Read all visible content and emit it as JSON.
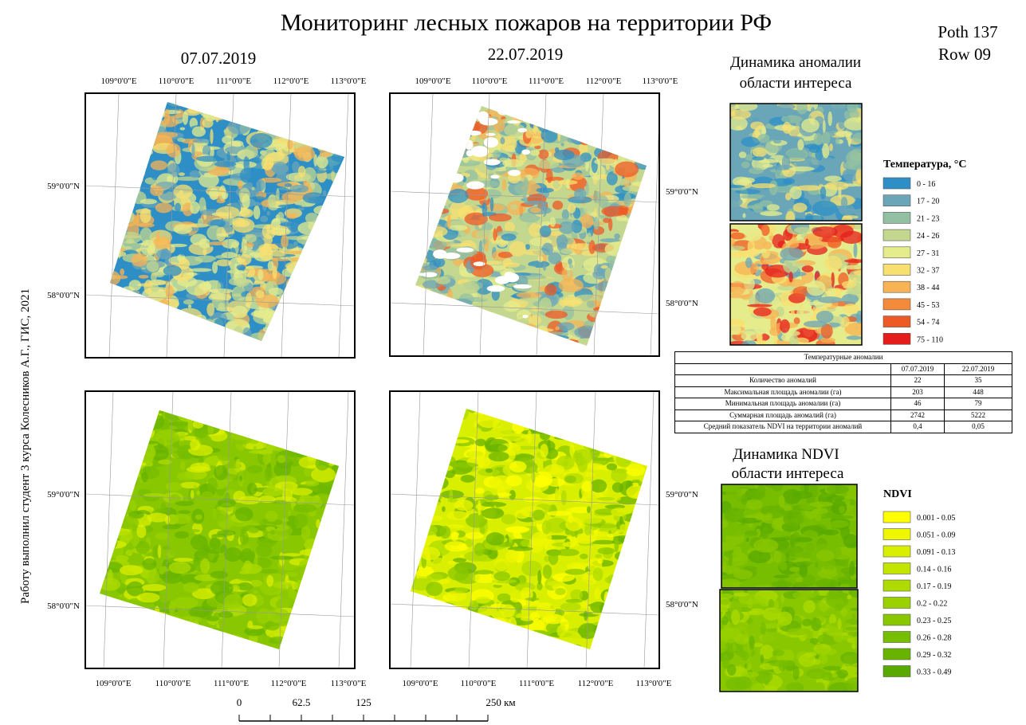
{
  "title": "Мониторинг лесных пожаров на территории РФ",
  "path_row": [
    "Poth 137",
    "Row 09"
  ],
  "dates": [
    "07.07.2019",
    "22.07.2019"
  ],
  "maps": [
    {
      "lon": [
        "109°0'0\"E",
        "110°0'0\"E",
        "111°0'0\"E",
        "112°0'0\"E",
        "113°0'0\"E"
      ],
      "lat": [
        "59°0'0\"N",
        "58°0'0\"N"
      ]
    },
    {
      "lon": [
        "109°0'0\"E",
        "110°0'0\"E",
        "111°0'0\"E",
        "112°0'0\"E",
        "113°0'0\"E"
      ],
      "lat": [
        "59°0'0\"N",
        "58°0'0\"N"
      ]
    },
    {
      "lon": [
        "109°0'0\"E",
        "110°0'0\"E",
        "111°0'0\"E",
        "112°0'0\"E",
        "113°0'0\"E"
      ],
      "lat": [
        "59°0'0\"N",
        "58°0'0\"N"
      ]
    },
    {
      "lon": [
        "109°0'0\"E",
        "110°0'0\"E",
        "111°0'0\"E",
        "112°0'0\"E",
        "113°0'0\"E"
      ],
      "lat": [
        "59°0'0\"N",
        "58°0'0\"N"
      ]
    }
  ],
  "anomaly_heading": [
    "Динамика аномалии",
    "области интереса"
  ],
  "temperature_legend": {
    "title": "Температура, °C",
    "classes": [
      {
        "label": "0 - 16",
        "color": "#2e8fc6"
      },
      {
        "label": "17 - 20",
        "color": "#6aa6b8"
      },
      {
        "label": "21 - 23",
        "color": "#93c0a2"
      },
      {
        "label": "24 - 26",
        "color": "#c3d78f"
      },
      {
        "label": "27 - 31",
        "color": "#e5ec8c"
      },
      {
        "label": "32 - 37",
        "color": "#f8e070"
      },
      {
        "label": "38 - 44",
        "color": "#f7b354"
      },
      {
        "label": "45 - 53",
        "color": "#f48b3b"
      },
      {
        "label": "54 - 74",
        "color": "#ee5a26"
      },
      {
        "label": "75 - 110",
        "color": "#e51c1c"
      }
    ]
  },
  "table": {
    "title": "Температурные аномалии",
    "columns": [
      "07.07.2019",
      "22.07.2019"
    ],
    "rows": [
      [
        "Количество аномалий",
        "22",
        "35"
      ],
      [
        "Максимальная площадь аномалии (га)",
        "203",
        "448"
      ],
      [
        "Минимальная площадь аномалии (га)",
        "46",
        "79"
      ],
      [
        "Суммарная площадь аномалий (га)",
        "2742",
        "5222"
      ],
      [
        "Средний показатель NDVI на территории аномалий",
        "0,4",
        "0,05"
      ]
    ]
  },
  "ndvi_heading": [
    "Динамика NDVI",
    "области интереса"
  ],
  "ndvi_legend": {
    "title": "NDVI",
    "classes": [
      {
        "label": "0.001 - 0.05",
        "color": "#ffff00"
      },
      {
        "label": "0.051 - 0.09",
        "color": "#eef700"
      },
      {
        "label": "0.091 - 0.13",
        "color": "#d9ef00"
      },
      {
        "label": "0.14 - 0.16",
        "color": "#c3e500"
      },
      {
        "label": "0.17 - 0.19",
        "color": "#aedb00"
      },
      {
        "label": "0.2 - 0.22",
        "color": "#9bd100"
      },
      {
        "label": "0.23 - 0.25",
        "color": "#89c700"
      },
      {
        "label": "0.26 - 0.28",
        "color": "#77bd00"
      },
      {
        "label": "0.29 - 0.32",
        "color": "#67b300"
      },
      {
        "label": "0.33 - 0.49",
        "color": "#58a900"
      }
    ]
  },
  "scale_bar": {
    "labels": [
      "0",
      "62.5",
      "125",
      "250 км"
    ]
  },
  "author": "Работу выполнил студент 3 курса Колесников А.Г., ГИС, 2021"
}
